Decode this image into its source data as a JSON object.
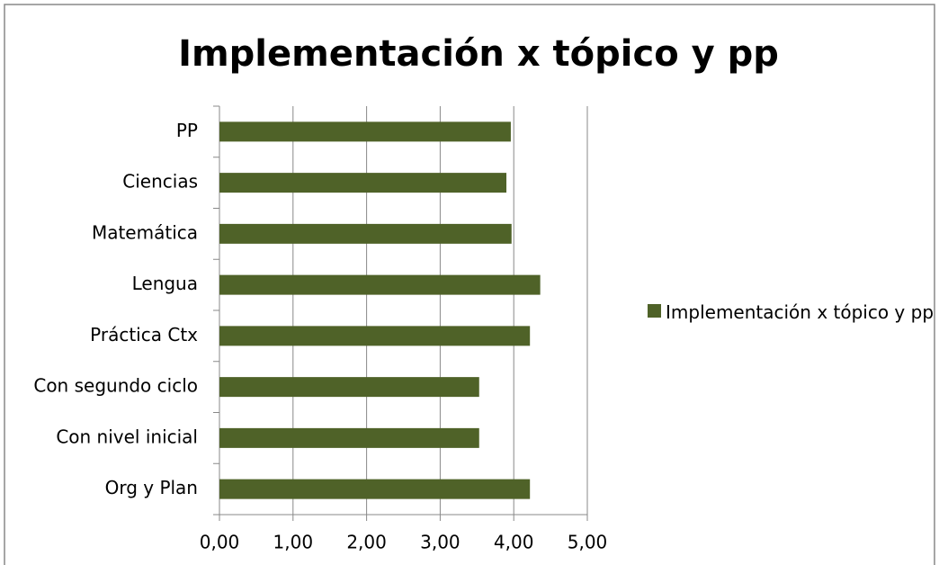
{
  "chart_data": {
    "type": "hbar",
    "title": "Implementación x tópico y pp",
    "categories": [
      "PP",
      "Ciencias",
      "Matemática",
      "Lengua",
      "Práctica Ctx",
      "Con segundo ciclo",
      "Con nivel inicial",
      "Org y Plan"
    ],
    "series": [
      {
        "name": "Implementación x tópico y pp",
        "color": "#4f6228",
        "values": [
          3.96,
          3.9,
          3.97,
          4.36,
          4.22,
          3.53,
          3.53,
          4.22
        ]
      }
    ],
    "xlim": [
      0,
      5
    ],
    "xticks": [
      {
        "value": 0,
        "label": "0,00"
      },
      {
        "value": 1,
        "label": "1,00"
      },
      {
        "value": 2,
        "label": "2,00"
      },
      {
        "value": 3,
        "label": "3,00"
      },
      {
        "value": 4,
        "label": "4,00"
      },
      {
        "value": 5,
        "label": "5,00"
      }
    ],
    "grid": true,
    "legend": "right"
  }
}
